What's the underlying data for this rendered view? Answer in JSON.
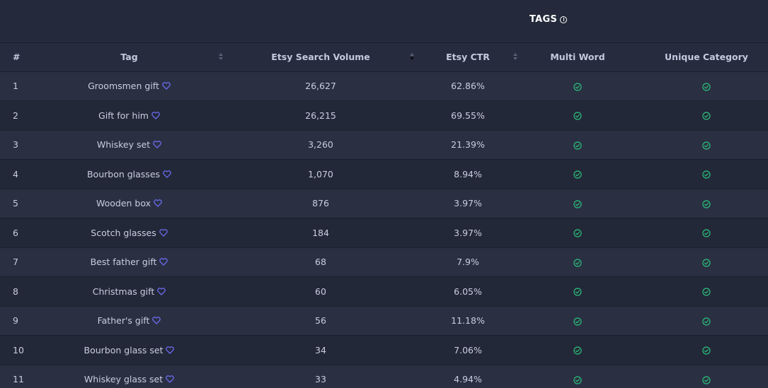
{
  "section": {
    "title": "TAGS"
  },
  "columns": {
    "num": "#",
    "tag": "Tag",
    "volume": "Etsy Search Volume",
    "ctr": "Etsy CTR",
    "multi": "Multi Word",
    "unique": "Unique Category"
  },
  "rows": [
    {
      "num": "1",
      "tag": "Groomsmen gift",
      "volume": "26,627",
      "ctr": "62.86%",
      "multi": true,
      "unique": true
    },
    {
      "num": "2",
      "tag": "Gift for him",
      "volume": "26,215",
      "ctr": "69.55%",
      "multi": true,
      "unique": true
    },
    {
      "num": "3",
      "tag": "Whiskey set",
      "volume": "3,260",
      "ctr": "21.39%",
      "multi": true,
      "unique": true
    },
    {
      "num": "4",
      "tag": "Bourbon glasses",
      "volume": "1,070",
      "ctr": "8.94%",
      "multi": true,
      "unique": true
    },
    {
      "num": "5",
      "tag": "Wooden box",
      "volume": "876",
      "ctr": "3.97%",
      "multi": true,
      "unique": true
    },
    {
      "num": "6",
      "tag": "Scotch glasses",
      "volume": "184",
      "ctr": "3.97%",
      "multi": true,
      "unique": true
    },
    {
      "num": "7",
      "tag": "Best father gift",
      "volume": "68",
      "ctr": "7.9%",
      "multi": true,
      "unique": true
    },
    {
      "num": "8",
      "tag": "Christmas gift",
      "volume": "60",
      "ctr": "6.05%",
      "multi": true,
      "unique": true
    },
    {
      "num": "9",
      "tag": "Father's gift",
      "volume": "56",
      "ctr": "11.18%",
      "multi": true,
      "unique": true
    },
    {
      "num": "10",
      "tag": "Bourbon glass set",
      "volume": "34",
      "ctr": "7.06%",
      "multi": true,
      "unique": true
    },
    {
      "num": "11",
      "tag": "Whiskey glass set",
      "volume": "33",
      "ctr": "4.94%",
      "multi": true,
      "unique": true
    }
  ],
  "icons": {
    "info": "info-circle-icon",
    "favorite": "heart-outline-icon",
    "check": "check-circle-icon",
    "sort": "sort-icon"
  },
  "colors": {
    "heart": "#6a6cf0",
    "check": "#2bbf7a",
    "background": "#222736"
  }
}
